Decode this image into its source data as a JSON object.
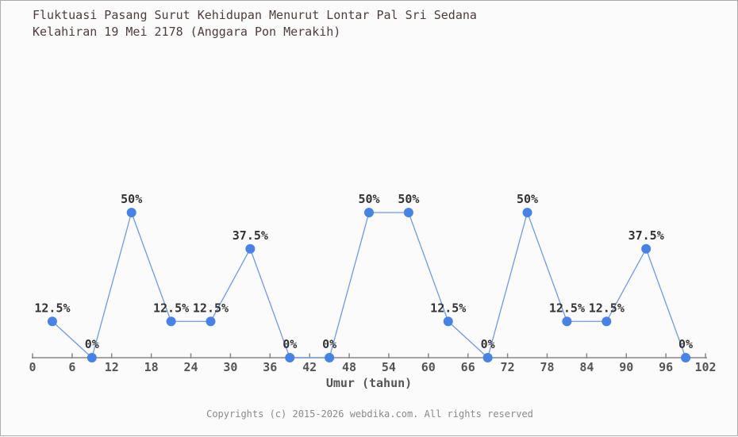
{
  "header": {
    "title_line1": "Fluktuasi Pasang Surut Kehidupan Menurut Lontar Pal Sri Sedana",
    "title_line2": "Kelahiran 19 Mei 2178 (Anggara Pon Merakih)"
  },
  "chart_data": {
    "type": "line",
    "title": "Fluktuasi Pasang Surut Kehidupan Menurut Lontar Pal Sri Sedana Kelahiran 19 Mei 2178 (Anggara Pon Merakih)",
    "xlabel": "Umur (tahun)",
    "ylabel": "",
    "x": [
      3,
      9,
      15,
      21,
      27,
      33,
      39,
      45,
      51,
      57,
      63,
      69,
      75,
      81,
      87,
      93,
      99
    ],
    "values": [
      12.5,
      0,
      50,
      12.5,
      12.5,
      37.5,
      0,
      0,
      50,
      50,
      12.5,
      0,
      50,
      12.5,
      12.5,
      37.5,
      0
    ],
    "point_labels": [
      "12.5%",
      "0%",
      "50%",
      "12.5%",
      "12.5%",
      "37.5%",
      "0%",
      "0%",
      "50%",
      "50%",
      "12.5%",
      "0%",
      "50%",
      "12.5%",
      "12.5%",
      "37.5%",
      "0%"
    ],
    "x_ticks": [
      0,
      6,
      12,
      18,
      24,
      30,
      36,
      42,
      48,
      54,
      60,
      66,
      72,
      78,
      84,
      90,
      96,
      102
    ],
    "xlim": [
      0,
      102
    ],
    "ylim": [
      0,
      122
    ],
    "grid": false,
    "legend": "none",
    "colors": {
      "line": "#6e9ae6",
      "point": "#4483ec",
      "axis": "#888888",
      "tick_label": "#555555",
      "point_label": "#333333",
      "title": "#4f3d3d",
      "background": "#fbfbfb"
    }
  },
  "footer": {
    "copyright": "Copyrights (c) 2015-2026 webdika.com. All rights reserved"
  }
}
